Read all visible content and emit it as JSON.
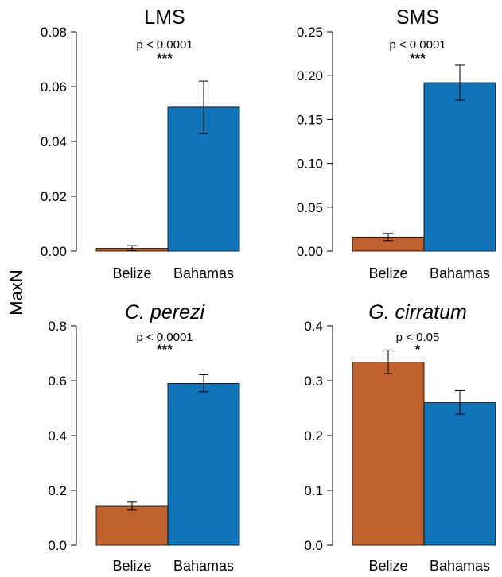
{
  "figure": {
    "ylabel": "MaxN",
    "colors": {
      "Belize": "#c0622d",
      "Bahamas": "#1173b8"
    }
  },
  "chart_data": [
    {
      "type": "bar",
      "title": "LMS",
      "italic_title": false,
      "p_text": "p < 0.0001",
      "significance": "***",
      "categories": [
        "Belize",
        "Bahamas"
      ],
      "values": [
        0.001,
        0.0525
      ],
      "error_low": [
        0.0003,
        0.043
      ],
      "error_high": [
        0.002,
        0.062
      ],
      "ylim": [
        0,
        0.08
      ],
      "yticks": [
        0.0,
        0.02,
        0.04,
        0.06,
        0.08
      ],
      "ytick_labels": [
        "0.00",
        "0.02",
        "0.04",
        "0.06",
        "0.08"
      ]
    },
    {
      "type": "bar",
      "title": "SMS",
      "italic_title": false,
      "p_text": "p < 0.0001",
      "significance": "***",
      "categories": [
        "Belize",
        "Bahamas"
      ],
      "values": [
        0.016,
        0.192
      ],
      "error_low": [
        0.012,
        0.172
      ],
      "error_high": [
        0.02,
        0.212
      ],
      "ylim": [
        0,
        0.25
      ],
      "yticks": [
        0.0,
        0.05,
        0.1,
        0.15,
        0.2,
        0.25
      ],
      "ytick_labels": [
        "0.00",
        "0.05",
        "0.10",
        "0.15",
        "0.20",
        "0.25"
      ]
    },
    {
      "type": "bar",
      "title": "C. perezi",
      "italic_title": true,
      "p_text": "p < 0.0001",
      "significance": "***",
      "categories": [
        "Belize",
        "Bahamas"
      ],
      "values": [
        0.142,
        0.59
      ],
      "error_low": [
        0.128,
        0.56
      ],
      "error_high": [
        0.157,
        0.622
      ],
      "ylim": [
        0,
        0.8
      ],
      "yticks": [
        0.0,
        0.2,
        0.4,
        0.6,
        0.8
      ],
      "ytick_labels": [
        "0.0",
        "0.2",
        "0.4",
        "0.6",
        "0.8"
      ]
    },
    {
      "type": "bar",
      "title": "G. cirratum",
      "italic_title": true,
      "p_text": "p < 0.05",
      "significance": "*",
      "categories": [
        "Belize",
        "Bahamas"
      ],
      "values": [
        0.334,
        0.26
      ],
      "error_low": [
        0.313,
        0.239
      ],
      "error_high": [
        0.356,
        0.282
      ],
      "ylim": [
        0,
        0.4
      ],
      "yticks": [
        0.0,
        0.1,
        0.2,
        0.3,
        0.4
      ],
      "ytick_labels": [
        "0.0",
        "0.1",
        "0.2",
        "0.3",
        "0.4"
      ]
    }
  ]
}
